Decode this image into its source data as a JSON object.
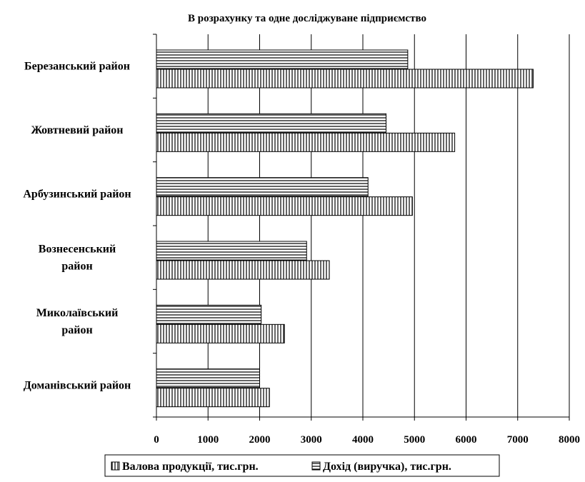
{
  "chart_data": {
    "type": "bar",
    "orientation": "horizontal",
    "title": "В розрахунку та одне досліджуване підприємство",
    "xlabel": "",
    "ylabel": "",
    "xlim": [
      0,
      8000
    ],
    "x_ticks": [
      "0",
      "1000",
      "2000",
      "3000",
      "4000",
      "5000",
      "6000",
      "7000",
      "8000"
    ],
    "grid": true,
    "legend_position": "bottom",
    "categories": [
      [
        "Березанський район"
      ],
      [
        "Жовтневий район"
      ],
      [
        "Арбузинський район"
      ],
      [
        "Вознесенський",
        "район"
      ],
      [
        "Миколаївський",
        "район"
      ],
      [
        "Доманівський район"
      ]
    ],
    "series": [
      {
        "name": "Валова продукції, тис.грн.",
        "pattern": "vertical-hatch",
        "values": [
          7300,
          5780,
          4960,
          3350,
          2480,
          2190
        ]
      },
      {
        "name": "Дохід (виручка), тис.грн.",
        "pattern": "horizontal-hatch",
        "values": [
          4870,
          4450,
          4100,
          2910,
          2030,
          2000
        ]
      }
    ]
  }
}
